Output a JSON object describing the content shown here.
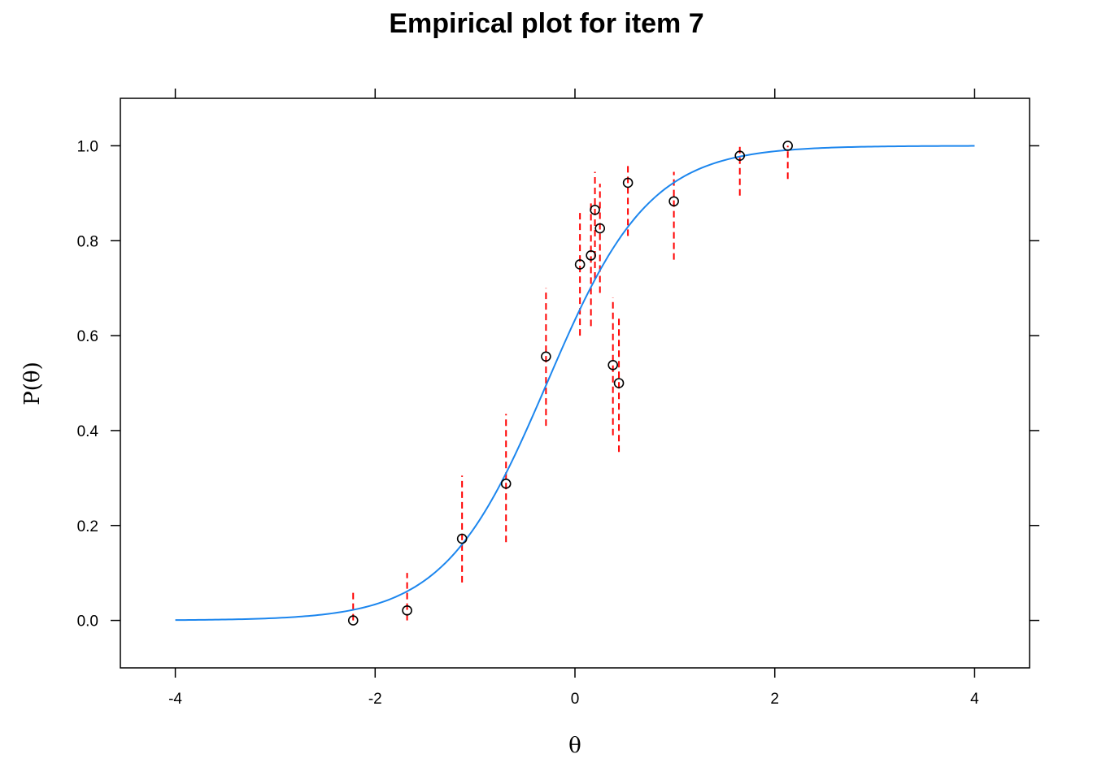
{
  "chart_data": {
    "type": "scatter",
    "title": "Empirical plot for item 7",
    "xlabel": "θ",
    "ylabel": "P(θ)",
    "xlim": [
      -4.55,
      4.55
    ],
    "ylim": [
      -0.1,
      1.1
    ],
    "x_ticks": [
      -4,
      -2,
      0,
      2,
      4
    ],
    "x_tick_labels": [
      "-4",
      "-2",
      "0",
      "2",
      "4"
    ],
    "y_ticks": [
      0.0,
      0.2,
      0.4,
      0.6,
      0.8,
      1.0
    ],
    "y_tick_labels": [
      "0.0",
      "0.2",
      "0.4",
      "0.6",
      "0.8",
      "1.0"
    ],
    "grid": false,
    "legend": "none",
    "series": [
      {
        "kind": "curve",
        "color": "#1c86ee",
        "model": "logistic",
        "discrimination": 1.95,
        "difficulty": -0.28,
        "x_range": [
          -4,
          4
        ]
      },
      {
        "kind": "points",
        "marker": "open-circle",
        "color": "#000000",
        "x": [
          -2.22,
          -1.68,
          -1.13,
          -0.69,
          -0.29,
          0.05,
          0.16,
          0.2,
          0.25,
          0.38,
          0.44,
          0.53,
          0.99,
          1.65,
          2.13
        ],
        "y": [
          0.0,
          0.021,
          0.172,
          0.288,
          0.556,
          0.75,
          0.769,
          0.865,
          0.826,
          0.538,
          0.5,
          0.922,
          0.883,
          0.979,
          1.0
        ]
      },
      {
        "kind": "error-bars",
        "style": "dashed",
        "color": "#ff0000",
        "x": [
          -2.22,
          -1.68,
          -1.13,
          -0.69,
          -0.29,
          0.05,
          0.16,
          0.2,
          0.25,
          0.38,
          0.44,
          0.53,
          0.99,
          1.65,
          2.13
        ],
        "lower": [
          0.0,
          0.0,
          0.08,
          0.165,
          0.41,
          0.6,
          0.62,
          0.72,
          0.69,
          0.39,
          0.355,
          0.81,
          0.76,
          0.895,
          0.93
        ],
        "upper": [
          0.065,
          0.1,
          0.305,
          0.435,
          0.7,
          0.86,
          0.88,
          0.945,
          0.92,
          0.68,
          0.64,
          0.965,
          0.945,
          1.0,
          1.0
        ]
      }
    ]
  }
}
